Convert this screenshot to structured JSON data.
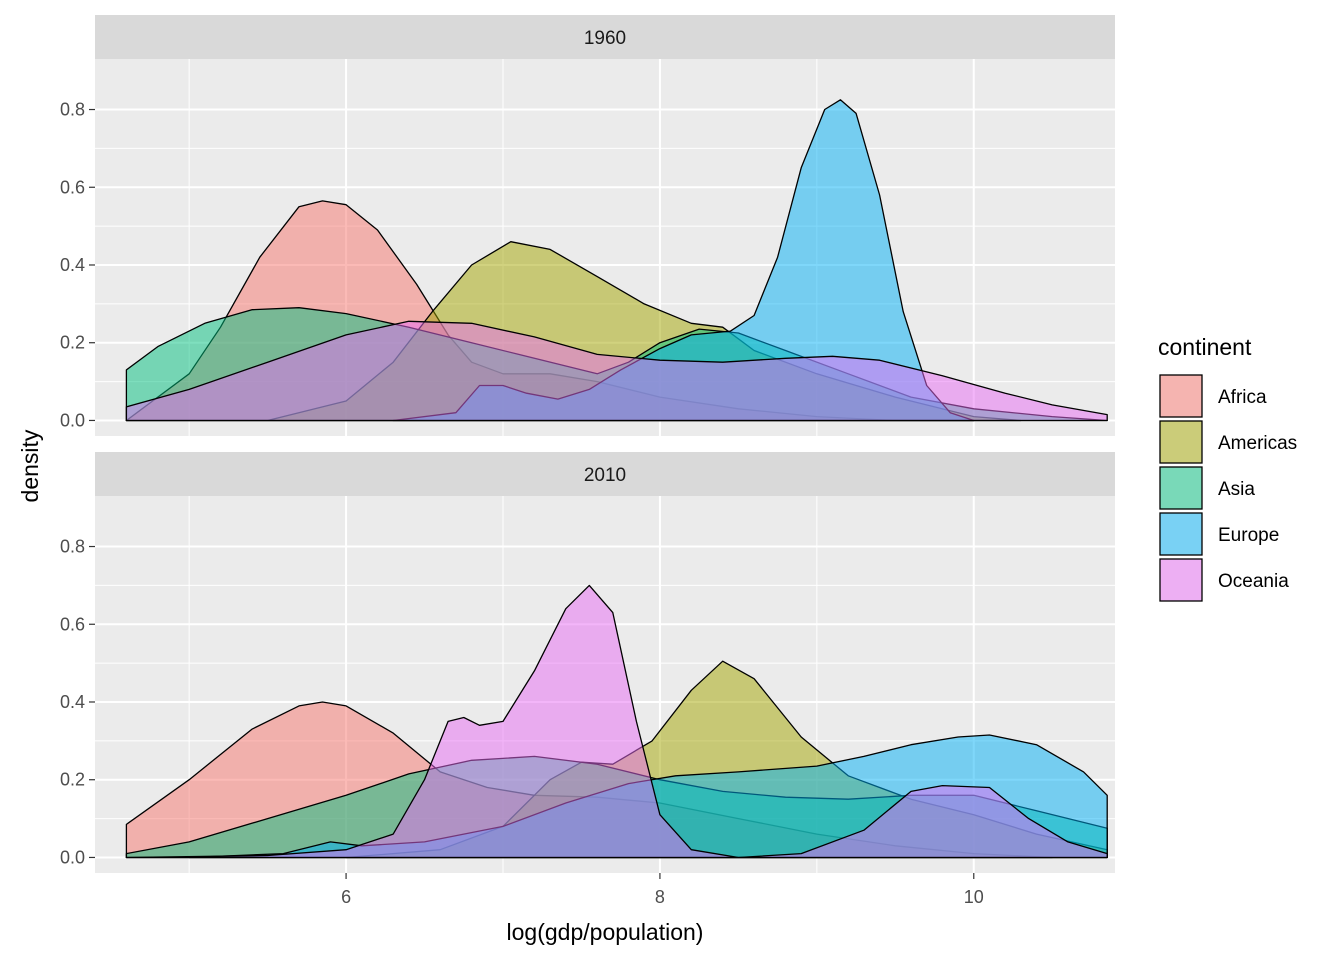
{
  "chart_data": {
    "type": "area",
    "xlabel": "log(gdp/population)",
    "ylabel": "density",
    "xlim": [
      4.4,
      10.9
    ],
    "ylim": [
      -0.04,
      0.93
    ],
    "x_ticks": [
      6,
      8,
      10
    ],
    "x_tick_labels": [
      "6",
      "8",
      "10"
    ],
    "y_ticks": [
      0.0,
      0.2,
      0.4,
      0.6,
      0.8
    ],
    "y_tick_labels": [
      "0.0",
      "0.2",
      "0.4",
      "0.6",
      "0.8"
    ],
    "grid": true,
    "legend": {
      "title": "continent",
      "placement": "right",
      "entries": [
        "Africa",
        "Americas",
        "Asia",
        "Europe",
        "Oceania"
      ]
    },
    "colors": {
      "Africa": "#F8766D",
      "Americas": "#A3A500",
      "Asia": "#00BF7D",
      "Europe": "#00B0F6",
      "Oceania": "#E76BF3",
      "panel_bg": "#EBEBEB",
      "strip_bg": "#D9D9D9",
      "grid": "#FFFFFF"
    },
    "fill_opacity": 0.5,
    "facets": [
      {
        "label": "1960",
        "series": [
          {
            "name": "Africa",
            "points": [
              [
                4.6,
                0.0
              ],
              [
                5.0,
                0.12
              ],
              [
                5.2,
                0.24
              ],
              [
                5.45,
                0.42
              ],
              [
                5.7,
                0.55
              ],
              [
                5.85,
                0.565
              ],
              [
                6.0,
                0.555
              ],
              [
                6.2,
                0.49
              ],
              [
                6.45,
                0.35
              ],
              [
                6.65,
                0.22
              ],
              [
                6.8,
                0.15
              ],
              [
                7.0,
                0.12
              ],
              [
                7.3,
                0.12
              ],
              [
                7.6,
                0.1
              ],
              [
                8.0,
                0.06
              ],
              [
                8.5,
                0.03
              ],
              [
                9.0,
                0.01
              ],
              [
                9.5,
                0.0
              ],
              [
                10.0,
                0.0
              ]
            ]
          },
          {
            "name": "Americas",
            "points": [
              [
                4.6,
                0.0
              ],
              [
                5.5,
                0.0
              ],
              [
                6.0,
                0.05
              ],
              [
                6.3,
                0.15
              ],
              [
                6.55,
                0.28
              ],
              [
                6.8,
                0.4
              ],
              [
                7.05,
                0.46
              ],
              [
                7.3,
                0.44
              ],
              [
                7.6,
                0.37
              ],
              [
                7.9,
                0.3
              ],
              [
                8.2,
                0.25
              ],
              [
                8.4,
                0.24
              ],
              [
                8.6,
                0.18
              ],
              [
                9.0,
                0.12
              ],
              [
                9.5,
                0.06
              ],
              [
                10.0,
                0.01
              ],
              [
                10.3,
                0.0
              ]
            ]
          },
          {
            "name": "Asia",
            "points": [
              [
                4.6,
                0.13
              ],
              [
                4.8,
                0.19
              ],
              [
                5.1,
                0.25
              ],
              [
                5.4,
                0.285
              ],
              [
                5.7,
                0.29
              ],
              [
                6.0,
                0.275
              ],
              [
                6.4,
                0.24
              ],
              [
                6.8,
                0.2
              ],
              [
                7.1,
                0.17
              ],
              [
                7.4,
                0.14
              ],
              [
                7.6,
                0.12
              ],
              [
                7.8,
                0.15
              ],
              [
                8.0,
                0.2
              ],
              [
                8.25,
                0.235
              ],
              [
                8.5,
                0.225
              ],
              [
                8.8,
                0.18
              ],
              [
                9.2,
                0.12
              ],
              [
                9.6,
                0.06
              ],
              [
                10.0,
                0.03
              ],
              [
                10.5,
                0.01
              ],
              [
                10.85,
                0.0
              ]
            ]
          },
          {
            "name": "Europe",
            "points": [
              [
                6.3,
                0.0
              ],
              [
                6.7,
                0.02
              ],
              [
                6.85,
                0.09
              ],
              [
                7.0,
                0.09
              ],
              [
                7.15,
                0.07
              ],
              [
                7.35,
                0.055
              ],
              [
                7.55,
                0.08
              ],
              [
                7.75,
                0.13
              ],
              [
                8.0,
                0.185
              ],
              [
                8.2,
                0.22
              ],
              [
                8.45,
                0.23
              ],
              [
                8.6,
                0.27
              ],
              [
                8.75,
                0.42
              ],
              [
                8.9,
                0.65
              ],
              [
                9.05,
                0.8
              ],
              [
                9.15,
                0.825
              ],
              [
                9.25,
                0.79
              ],
              [
                9.4,
                0.58
              ],
              [
                9.55,
                0.28
              ],
              [
                9.7,
                0.09
              ],
              [
                9.85,
                0.02
              ],
              [
                10.0,
                0.0
              ]
            ]
          },
          {
            "name": "Oceania",
            "points": [
              [
                4.6,
                0.035
              ],
              [
                5.0,
                0.08
              ],
              [
                5.5,
                0.15
              ],
              [
                6.0,
                0.22
              ],
              [
                6.4,
                0.255
              ],
              [
                6.8,
                0.25
              ],
              [
                7.2,
                0.215
              ],
              [
                7.6,
                0.17
              ],
              [
                8.0,
                0.155
              ],
              [
                8.4,
                0.15
              ],
              [
                8.8,
                0.16
              ],
              [
                9.1,
                0.165
              ],
              [
                9.4,
                0.155
              ],
              [
                9.8,
                0.115
              ],
              [
                10.2,
                0.07
              ],
              [
                10.5,
                0.04
              ],
              [
                10.85,
                0.015
              ]
            ]
          }
        ]
      },
      {
        "label": "2010",
        "series": [
          {
            "name": "Africa",
            "points": [
              [
                4.6,
                0.085
              ],
              [
                5.0,
                0.2
              ],
              [
                5.4,
                0.33
              ],
              [
                5.7,
                0.39
              ],
              [
                5.85,
                0.4
              ],
              [
                6.0,
                0.39
              ],
              [
                6.3,
                0.32
              ],
              [
                6.6,
                0.22
              ],
              [
                6.9,
                0.18
              ],
              [
                7.2,
                0.16
              ],
              [
                7.6,
                0.155
              ],
              [
                8.0,
                0.14
              ],
              [
                8.5,
                0.1
              ],
              [
                9.0,
                0.06
              ],
              [
                9.5,
                0.03
              ],
              [
                10.0,
                0.01
              ],
              [
                10.5,
                0.0
              ]
            ]
          },
          {
            "name": "Americas",
            "points": [
              [
                6.0,
                0.0
              ],
              [
                6.6,
                0.02
              ],
              [
                7.0,
                0.08
              ],
              [
                7.3,
                0.2
              ],
              [
                7.5,
                0.245
              ],
              [
                7.7,
                0.24
              ],
              [
                7.95,
                0.3
              ],
              [
                8.2,
                0.43
              ],
              [
                8.4,
                0.505
              ],
              [
                8.6,
                0.46
              ],
              [
                8.9,
                0.31
              ],
              [
                9.2,
                0.21
              ],
              [
                9.6,
                0.15
              ],
              [
                10.0,
                0.11
              ],
              [
                10.4,
                0.06
              ],
              [
                10.85,
                0.02
              ]
            ]
          },
          {
            "name": "Asia",
            "points": [
              [
                4.6,
                0.01
              ],
              [
                5.0,
                0.04
              ],
              [
                5.5,
                0.1
              ],
              [
                6.0,
                0.16
              ],
              [
                6.4,
                0.215
              ],
              [
                6.8,
                0.25
              ],
              [
                7.2,
                0.26
              ],
              [
                7.6,
                0.24
              ],
              [
                8.0,
                0.2
              ],
              [
                8.4,
                0.17
              ],
              [
                8.8,
                0.155
              ],
              [
                9.2,
                0.15
              ],
              [
                9.6,
                0.16
              ],
              [
                10.0,
                0.16
              ],
              [
                10.4,
                0.12
              ],
              [
                10.85,
                0.075
              ]
            ]
          },
          {
            "name": "Europe",
            "points": [
              [
                5.0,
                0.0
              ],
              [
                5.6,
                0.01
              ],
              [
                5.9,
                0.04
              ],
              [
                6.1,
                0.03
              ],
              [
                6.5,
                0.04
              ],
              [
                7.0,
                0.08
              ],
              [
                7.4,
                0.14
              ],
              [
                7.8,
                0.19
              ],
              [
                8.1,
                0.21
              ],
              [
                8.5,
                0.22
              ],
              [
                9.0,
                0.235
              ],
              [
                9.3,
                0.26
              ],
              [
                9.6,
                0.29
              ],
              [
                9.9,
                0.31
              ],
              [
                10.1,
                0.315
              ],
              [
                10.4,
                0.29
              ],
              [
                10.7,
                0.22
              ],
              [
                10.85,
                0.16
              ]
            ]
          },
          {
            "name": "Oceania",
            "points": [
              [
                4.6,
                0.0
              ],
              [
                5.5,
                0.005
              ],
              [
                6.0,
                0.02
              ],
              [
                6.3,
                0.06
              ],
              [
                6.5,
                0.2
              ],
              [
                6.65,
                0.35
              ],
              [
                6.75,
                0.36
              ],
              [
                6.85,
                0.34
              ],
              [
                7.0,
                0.35
              ],
              [
                7.2,
                0.48
              ],
              [
                7.4,
                0.64
              ],
              [
                7.55,
                0.7
              ],
              [
                7.7,
                0.63
              ],
              [
                7.85,
                0.35
              ],
              [
                8.0,
                0.11
              ],
              [
                8.2,
                0.02
              ],
              [
                8.5,
                0.0
              ],
              [
                8.9,
                0.01
              ],
              [
                9.3,
                0.07
              ],
              [
                9.6,
                0.17
              ],
              [
                9.8,
                0.185
              ],
              [
                10.1,
                0.18
              ],
              [
                10.35,
                0.1
              ],
              [
                10.6,
                0.04
              ],
              [
                10.85,
                0.01
              ]
            ]
          }
        ]
      }
    ]
  }
}
